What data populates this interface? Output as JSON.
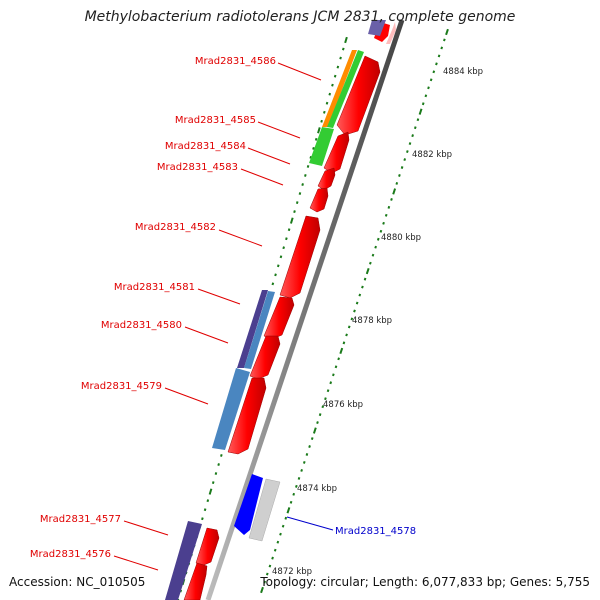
{
  "title": "Methylobacterium radiotolerans JCM 2831, complete genome",
  "accession": "Accession: NC_010505",
  "summary": "Topology: circular; Length: 6,077,833 bp; Genes: 5,755",
  "colors": {
    "forward": "#ff0000",
    "reverse_dark": "#4b3f8f",
    "reverse_light": "#4a86c0",
    "orange": "#ff8c00",
    "green": "#33cc33",
    "blue": "#0000ff",
    "grey": "#cfcfcf",
    "tick": "#1a7a1a",
    "label_red": "#e00000",
    "label_blue": "#0000cc"
  },
  "kbp_ticks": [
    "4884 kbp",
    "4882 kbp",
    "4880 kbp",
    "4878 kbp",
    "4876 kbp",
    "4874 kbp",
    "4872 kbp"
  ],
  "gene_labels": [
    {
      "text": "Mrad2831_4586",
      "color": "red"
    },
    {
      "text": "Mrad2831_4585",
      "color": "red"
    },
    {
      "text": "Mrad2831_4584",
      "color": "red"
    },
    {
      "text": "Mrad2831_4583",
      "color": "red"
    },
    {
      "text": "Mrad2831_4582",
      "color": "red"
    },
    {
      "text": "Mrad2831_4581",
      "color": "red"
    },
    {
      "text": "Mrad2831_4580",
      "color": "red"
    },
    {
      "text": "Mrad2831_4579",
      "color": "red"
    },
    {
      "text": "Mrad2831_4577",
      "color": "red"
    },
    {
      "text": "Mrad2831_4576",
      "color": "red"
    },
    {
      "text": "Mrad2831_4578",
      "color": "blue"
    }
  ]
}
